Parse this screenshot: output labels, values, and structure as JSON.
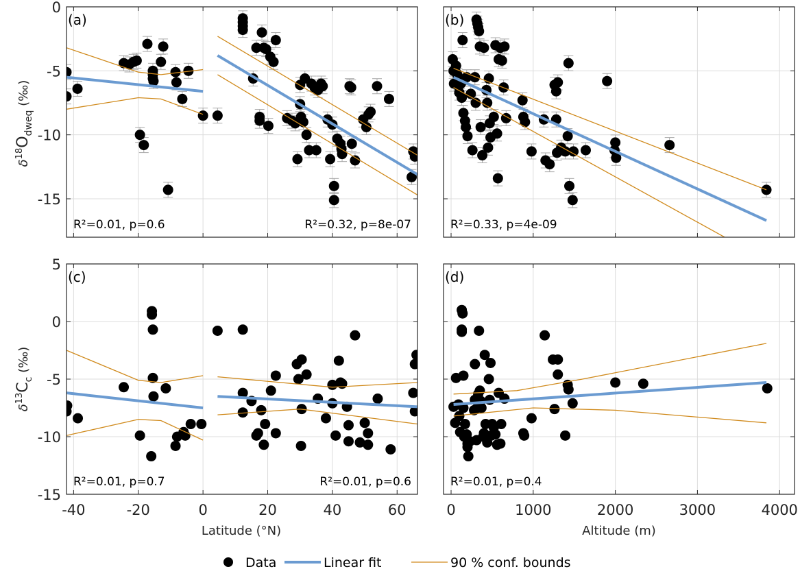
{
  "chart_data": [
    {
      "type": "scatter",
      "panel": "(a)",
      "xlabel": "",
      "ylabel": "δ18O_dweq (‰)",
      "xlim": [
        -42.2,
        66.3
      ],
      "ylim": [
        -18,
        0
      ],
      "xticks": [
        -40,
        -20,
        0,
        20,
        40,
        60
      ],
      "yticks": [
        0,
        -5,
        -10,
        -15
      ],
      "grid": true,
      "errorbars": true,
      "data": [
        [
          -42.2,
          -5.1
        ],
        [
          -42.2,
          -7.0
        ],
        [
          -38.8,
          -6.4
        ],
        [
          -24.5,
          -4.4
        ],
        [
          -22.8,
          -4.5
        ],
        [
          -21.5,
          -4.3
        ],
        [
          -20.5,
          -4.2
        ],
        [
          -19.5,
          -10.0
        ],
        [
          -17.2,
          -2.9
        ],
        [
          -18.3,
          -10.8
        ],
        [
          -15.5,
          -5.0
        ],
        [
          -15.5,
          -5.3
        ],
        [
          -15.5,
          -5.6
        ],
        [
          -15.3,
          -5.8
        ],
        [
          -13,
          -4.3
        ],
        [
          -12.3,
          -3.1
        ],
        [
          -10.8,
          -14.3
        ],
        [
          -8.5,
          -5.1
        ],
        [
          -8.2,
          -5.9
        ],
        [
          -6.4,
          -7.2
        ],
        [
          -4.5,
          -5.0
        ],
        [
          0,
          -8.5
        ],
        [
          4.5,
          -8.5
        ],
        [
          12.3,
          -0.9
        ],
        [
          12.3,
          -1.2
        ],
        [
          12.3,
          -1.5
        ],
        [
          12.3,
          -1.8
        ],
        [
          15.5,
          -5.6
        ],
        [
          16.5,
          -3.2
        ],
        [
          17.5,
          -8.6
        ],
        [
          17.5,
          -8.9
        ],
        [
          18.2,
          -2.0
        ],
        [
          18.8,
          -3.2
        ],
        [
          19.5,
          -3.3
        ],
        [
          20.2,
          -9.3
        ],
        [
          20.8,
          -3.9
        ],
        [
          21.8,
          -4.3
        ],
        [
          22.5,
          -2.6
        ],
        [
          26,
          -8.7
        ],
        [
          27.5,
          -8.9
        ],
        [
          28.5,
          -9.1
        ],
        [
          29.2,
          -11.9
        ],
        [
          30,
          -6.1
        ],
        [
          30,
          -7.6
        ],
        [
          30.3,
          -8.6
        ],
        [
          31,
          -9.0
        ],
        [
          31.5,
          -5.6
        ],
        [
          32,
          -10.0
        ],
        [
          32.8,
          -11.2
        ],
        [
          33.5,
          -6.0
        ],
        [
          34.5,
          -6.3
        ],
        [
          35,
          -11.2
        ],
        [
          35.5,
          -6.5
        ],
        [
          36.5,
          -6.0
        ],
        [
          37,
          -6.2
        ],
        [
          38.5,
          -8.8
        ],
        [
          39.3,
          -11.9
        ],
        [
          40,
          -9.2
        ],
        [
          40.5,
          -14.0
        ],
        [
          40.5,
          -15.1
        ],
        [
          41.5,
          -10.3
        ],
        [
          42.5,
          -10.7
        ],
        [
          42.8,
          -11.1
        ],
        [
          43,
          -11.5
        ],
        [
          45.3,
          -6.2
        ],
        [
          45.8,
          -6.3
        ],
        [
          46,
          -10.7
        ],
        [
          47,
          -12.0
        ],
        [
          49.5,
          -8.8
        ],
        [
          50.5,
          -9.4
        ],
        [
          51.2,
          -8.4
        ],
        [
          51.8,
          -8.2
        ],
        [
          53.8,
          -6.2
        ],
        [
          57.5,
          -7.2
        ],
        [
          65.0,
          -11.3
        ],
        [
          65.5,
          -11.7
        ],
        [
          64.5,
          -13.3
        ]
      ],
      "fits": [
        {
          "x": [
            -42.2,
            0
          ],
          "fit": [
            -5.5,
            -6.6
          ],
          "upper": [
            -3.2,
            -4.9
          ],
          "lower": [
            -8.0,
            -8.4
          ],
          "upper_mid": [
            [
              -20,
              -5.1
            ],
            [
              -13,
              -5.3
            ]
          ],
          "lower_mid": [
            [
              -20,
              -7.1
            ],
            [
              -13,
              -7.2
            ]
          ]
        },
        {
          "x": [
            4.5,
            66.3
          ],
          "fit": [
            -3.8,
            -13.1
          ],
          "upper": [
            -2.3,
            -11.6
          ],
          "lower": [
            -5.3,
            -14.7
          ]
        }
      ],
      "annotations": [
        "R²=0.01, p=0.6",
        "R²=0.32, p=8e-07"
      ]
    },
    {
      "type": "scatter",
      "panel": "(b)",
      "xlabel": "",
      "ylabel": "",
      "xlim": [
        -92,
        4182
      ],
      "ylim": [
        -18,
        0
      ],
      "xticks": [
        0,
        1000,
        2000,
        3000,
        4000
      ],
      "yticks": [
        0,
        -5,
        -10,
        -15
      ],
      "grid": true,
      "errorbars": true,
      "data": [
        [
          20,
          -4.1
        ],
        [
          30,
          -5.0
        ],
        [
          35,
          -6.0
        ],
        [
          60,
          -4.6
        ],
        [
          70,
          -5.2
        ],
        [
          80,
          -5.4
        ],
        [
          90,
          -6.2
        ],
        [
          100,
          -6.7
        ],
        [
          110,
          -5.8
        ],
        [
          120,
          -6.0
        ],
        [
          130,
          -7.1
        ],
        [
          140,
          -2.6
        ],
        [
          150,
          -8.3
        ],
        [
          170,
          -8.9
        ],
        [
          180,
          -9.4
        ],
        [
          190,
          -5.5
        ],
        [
          200,
          -10.1
        ],
        [
          240,
          -6.8
        ],
        [
          260,
          -11.2
        ],
        [
          290,
          -5.5
        ],
        [
          300,
          -7.5
        ],
        [
          310,
          -1.0
        ],
        [
          320,
          -1.3
        ],
        [
          330,
          -1.6
        ],
        [
          340,
          -1.9
        ],
        [
          350,
          -3.1
        ],
        [
          360,
          -9.4
        ],
        [
          380,
          -11.6
        ],
        [
          400,
          -3.2
        ],
        [
          430,
          -6.5
        ],
        [
          440,
          -7.5
        ],
        [
          450,
          -11.0
        ],
        [
          460,
          -5.6
        ],
        [
          470,
          -9.1
        ],
        [
          480,
          -10.2
        ],
        [
          520,
          -8.6
        ],
        [
          540,
          -3.0
        ],
        [
          560,
          -9.9
        ],
        [
          570,
          -13.4
        ],
        [
          580,
          -4.1
        ],
        [
          600,
          -3.2
        ],
        [
          620,
          -4.2
        ],
        [
          650,
          -3.1
        ],
        [
          670,
          -8.7
        ],
        [
          640,
          -6.3
        ],
        [
          870,
          -7.3
        ],
        [
          880,
          -8.6
        ],
        [
          900,
          -9.0
        ],
        [
          980,
          -11.3
        ],
        [
          1130,
          -8.8
        ],
        [
          1150,
          -12.0
        ],
        [
          1200,
          -12.3
        ],
        [
          1280,
          -8.8
        ],
        [
          1260,
          -6.1
        ],
        [
          1280,
          -6.6
        ],
        [
          1300,
          -5.9
        ],
        [
          1290,
          -11.4
        ],
        [
          1340,
          -11.0
        ],
        [
          1420,
          -10.1
        ],
        [
          1430,
          -4.4
        ],
        [
          1440,
          -14.0
        ],
        [
          1480,
          -15.1
        ],
        [
          1390,
          -11.3
        ],
        [
          1490,
          -11.3
        ],
        [
          1640,
          -11.2
        ],
        [
          1900,
          -5.8
        ],
        [
          1990,
          -11.2
        ],
        [
          2000,
          -10.6
        ],
        [
          2010,
          -11.8
        ],
        [
          2660,
          -10.8
        ],
        [
          3840,
          -14.3
        ]
      ],
      "fits": [
        {
          "x": [
            30,
            3840
          ],
          "fit": [
            -5.5,
            -16.7
          ],
          "upper": [
            -4.8,
            -14.3
          ],
          "lower": [
            -6.3,
            -19.8
          ]
        }
      ],
      "annotations": [
        "R²=0.33, p=4e-09"
      ]
    },
    {
      "type": "scatter",
      "panel": "(c)",
      "xlabel": "Latitude (°N)",
      "ylabel": "δ13C_c (‰)",
      "xlim": [
        -42.2,
        66.3
      ],
      "ylim": [
        -15,
        5
      ],
      "xticks": [
        -40,
        -20,
        0,
        20,
        40,
        60
      ],
      "yticks": [
        5,
        0,
        -5,
        -10,
        -15
      ],
      "grid": true,
      "errorbars": false,
      "data": [
        [
          -42,
          -7.3
        ],
        [
          -42.2,
          -7.8
        ],
        [
          -38.7,
          -8.4
        ],
        [
          -24.5,
          -5.7
        ],
        [
          -19.5,
          -9.9
        ],
        [
          -15.8,
          0.9
        ],
        [
          -15.8,
          0.6
        ],
        [
          -15.5,
          -0.7
        ],
        [
          -15.5,
          -4.9
        ],
        [
          -15.3,
          -6.5
        ],
        [
          -16,
          -11.7
        ],
        [
          -11.5,
          -5.8
        ],
        [
          -8.5,
          -10.8
        ],
        [
          -8,
          -10.0
        ],
        [
          -6,
          -9.6
        ],
        [
          -5.5,
          -9.9
        ],
        [
          -3.8,
          -8.9
        ],
        [
          -0.5,
          -8.9
        ],
        [
          4.5,
          -0.8
        ],
        [
          12.3,
          -0.7
        ],
        [
          12.3,
          -6.2
        ],
        [
          12.3,
          -7.9
        ],
        [
          15,
          -6.9
        ],
        [
          16.5,
          -9.9
        ],
        [
          17,
          -9.7
        ],
        [
          18,
          -7.7
        ],
        [
          18.8,
          -10.7
        ],
        [
          19.2,
          -8.9
        ],
        [
          21,
          -6.0
        ],
        [
          22.5,
          -9.7
        ],
        [
          22.5,
          -4.7
        ],
        [
          29,
          -3.7
        ],
        [
          29.5,
          -5.0
        ],
        [
          30.5,
          -3.3
        ],
        [
          30.5,
          -7.6
        ],
        [
          30.3,
          -10.8
        ],
        [
          32,
          -4.6
        ],
        [
          35.5,
          -6.7
        ],
        [
          38,
          -8.4
        ],
        [
          40,
          -7.1
        ],
        [
          40,
          -5.5
        ],
        [
          41,
          -9.9
        ],
        [
          42.5,
          -5.3
        ],
        [
          42,
          -3.4
        ],
        [
          43,
          -5.4
        ],
        [
          44.5,
          -7.4
        ],
        [
          45,
          -9.0
        ],
        [
          45,
          -10.4
        ],
        [
          47,
          -1.2
        ],
        [
          48.5,
          -10.5
        ],
        [
          50,
          -8.8
        ],
        [
          51,
          -9.7
        ],
        [
          51,
          -10.7
        ],
        [
          54,
          -6.7
        ],
        [
          58,
          -11.1
        ],
        [
          65,
          -6.2
        ],
        [
          66,
          -2.9
        ],
        [
          65.5,
          -3.7
        ],
        [
          65.5,
          -7.8
        ]
      ],
      "fits": [
        {
          "x": [
            -42.2,
            0
          ],
          "fit": [
            -6.2,
            -7.5
          ],
          "upper": [
            -2.5,
            -4.7
          ],
          "lower": [
            -9.9,
            -10.3
          ],
          "upper_mid": [
            [
              -20,
              -5.1
            ],
            [
              -13,
              -5.3
            ]
          ],
          "lower_mid": [
            [
              -20,
              -8.5
            ],
            [
              -13,
              -8.6
            ]
          ]
        },
        {
          "x": [
            4.5,
            66.3
          ],
          "fit": [
            -6.5,
            -7.4
          ],
          "upper": [
            -4.8,
            -5.3
          ],
          "lower": [
            -8.1,
            -8.9
          ],
          "upper_mid": [
            [
              40,
              -5.7
            ]
          ],
          "lower_mid": [
            [
              30,
              -7.6
            ]
          ]
        }
      ],
      "annotations": [
        "R²=0.01, p=0.7",
        "R²=0.01, p=0.6"
      ]
    },
    {
      "type": "scatter",
      "panel": "(d)",
      "xlabel": "Altitude (m)",
      "ylabel": "",
      "xlim": [
        -92,
        4182
      ],
      "ylim": [
        -15,
        5
      ],
      "xticks": [
        0,
        1000,
        2000,
        3000,
        4000
      ],
      "yticks": [
        5,
        0,
        -5,
        -10,
        -15
      ],
      "grid": true,
      "errorbars": false,
      "data": [
        [
          30,
          -7.4
        ],
        [
          50,
          -8.8
        ],
        [
          60,
          -4.9
        ],
        [
          90,
          -7.2
        ],
        [
          100,
          -8.2
        ],
        [
          110,
          -9.6
        ],
        [
          130,
          -0.9
        ],
        [
          130,
          -0.7
        ],
        [
          130,
          1.0
        ],
        [
          140,
          0.7
        ],
        [
          150,
          -4.7
        ],
        [
          150,
          -7.5
        ],
        [
          160,
          -10.0
        ],
        [
          170,
          -8.9
        ],
        [
          190,
          -9.8
        ],
        [
          200,
          -10.6
        ],
        [
          200,
          -10.9
        ],
        [
          210,
          -11.7
        ],
        [
          230,
          -10.4
        ],
        [
          280,
          -7.7
        ],
        [
          290,
          -6.8
        ],
        [
          290,
          -3.7
        ],
        [
          310,
          -10.3
        ],
        [
          320,
          -7.5
        ],
        [
          330,
          -6.3
        ],
        [
          340,
          -0.8
        ],
        [
          350,
          -6.0
        ],
        [
          360,
          -6.9
        ],
        [
          370,
          -7.5
        ],
        [
          390,
          -10.0
        ],
        [
          400,
          -9.7
        ],
        [
          410,
          -2.9
        ],
        [
          420,
          -8.9
        ],
        [
          440,
          -10.5
        ],
        [
          460,
          -5.0
        ],
        [
          470,
          -6.8
        ],
        [
          480,
          -3.6
        ],
        [
          490,
          -9.9
        ],
        [
          500,
          -8.9
        ],
        [
          520,
          -9.2
        ],
        [
          540,
          -9.8
        ],
        [
          560,
          -10.7
        ],
        [
          580,
          -6.2
        ],
        [
          600,
          -10.6
        ],
        [
          610,
          -8.9
        ],
        [
          650,
          -6.7
        ],
        [
          880,
          -9.7
        ],
        [
          890,
          -9.9
        ],
        [
          980,
          -8.4
        ],
        [
          1140,
          -1.2
        ],
        [
          1240,
          -3.3
        ],
        [
          1260,
          -7.6
        ],
        [
          1300,
          -3.3
        ],
        [
          1300,
          -4.6
        ],
        [
          1390,
          -9.9
        ],
        [
          1420,
          -5.5
        ],
        [
          1430,
          -5.9
        ],
        [
          1480,
          -7.1
        ],
        [
          2000,
          -5.3
        ],
        [
          2340,
          -5.4
        ],
        [
          3850,
          -5.8
        ]
      ],
      "fits": [
        {
          "x": [
            30,
            3840
          ],
          "fit": [
            -7.2,
            -5.3
          ],
          "upper": [
            -6.3,
            -1.9
          ],
          "lower": [
            -8.2,
            -8.8
          ],
          "upper_mid": [
            [
              800,
              -6.0
            ],
            [
              1600,
              -5.0
            ]
          ],
          "lower_mid": [
            [
              1000,
              -7.5
            ],
            [
              2000,
              -7.7
            ]
          ]
        }
      ],
      "annotations": [
        "R²=0.01, p=0.4"
      ]
    }
  ],
  "panel_labels": [
    "(a)",
    "(b)",
    "(c)",
    "(d)"
  ],
  "axes": {
    "ylabel_top_main": "δ",
    "ylabel_top_sup": "18",
    "ylabel_top_O": "O",
    "ylabel_top_sub": "dweq",
    "ylabel_top_unit": " (‰)",
    "ylabel_bottom_main": "δ",
    "ylabel_bottom_sup": "13",
    "ylabel_bottom_C": "C",
    "ylabel_bottom_sub": "c",
    "ylabel_bottom_unit": " (‰)",
    "xlabel_left": "Latitude (°N)",
    "xlabel_right": "Altitude (m)"
  },
  "legend": {
    "data": "Data",
    "fit": "Linear fit",
    "bounds": "90 % conf. bounds"
  },
  "colors": {
    "data": "#000000",
    "fit": "#6b9bd1",
    "bounds": "#d08a1c",
    "grid": "#dcdcdc",
    "errorbar": "#a8a8a8"
  }
}
